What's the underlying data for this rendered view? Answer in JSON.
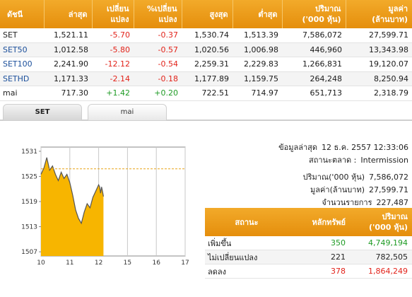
{
  "index_table": {
    "headers": [
      [
        "ดัชนี"
      ],
      [
        "ล่าสุด"
      ],
      [
        "เปลี่ยน",
        "แปลง"
      ],
      [
        "%เปลี่ยน",
        "แปลง"
      ],
      [
        "สูงสุด"
      ],
      [
        "ต่ำสุด"
      ],
      [
        "ปริมาณ",
        "('000 หุ้น)"
      ],
      [
        "มูลค่า",
        "(ล้านบาท)"
      ]
    ],
    "rows": [
      {
        "name": "SET",
        "is_link": false,
        "last": "1,521.11",
        "change": "-5.70",
        "pct": "-0.37",
        "high": "1,530.74",
        "low": "1,513.39",
        "volume": "7,586,072",
        "value": "27,599.71",
        "dir": "neg"
      },
      {
        "name": "SET50",
        "is_link": true,
        "last": "1,012.58",
        "change": "-5.80",
        "pct": "-0.57",
        "high": "1,020.56",
        "low": "1,006.98",
        "volume": "446,960",
        "value": "13,343.98",
        "dir": "neg"
      },
      {
        "name": "SET100",
        "is_link": true,
        "last": "2,241.90",
        "change": "-12.12",
        "pct": "-0.54",
        "high": "2,259.31",
        "low": "2,229.83",
        "volume": "1,266,831",
        "value": "19,120.07",
        "dir": "neg"
      },
      {
        "name": "SETHD",
        "is_link": true,
        "last": "1,171.33",
        "change": "-2.14",
        "pct": "-0.18",
        "high": "1,177.89",
        "low": "1,159.75",
        "volume": "264,248",
        "value": "8,250.94",
        "dir": "neg"
      },
      {
        "name": "mai",
        "is_link": false,
        "last": "717.30",
        "change": "+1.42",
        "pct": "+0.20",
        "high": "722.51",
        "low": "714.97",
        "volume": "651,713",
        "value": "2,318.79",
        "dir": "pos"
      }
    ]
  },
  "tabs": [
    {
      "label": "SET",
      "active": true
    },
    {
      "label": "mai",
      "active": false
    }
  ],
  "info": {
    "updated_label": "ข้อมูลล่าสุด",
    "updated_value": "12 ธ.ค. 2557 12:33:06",
    "status_label": "สถานะตลาด :",
    "status_value": "Intermission",
    "volume_label": "ปริมาณ('000 หุ้น)",
    "volume_value": "7,586,072",
    "value_label": "มูลค่า(ล้านบาท)",
    "value_value": "27,599.71",
    "trades_label": "จำนวนรายการ",
    "trades_value": "227,487"
  },
  "summary_table": {
    "headers": [
      [
        "สถานะ"
      ],
      [
        "หลักทรัพย์"
      ],
      [
        "ปริมาณ",
        "('000 หุ้น)"
      ]
    ],
    "rows": [
      {
        "status": "เพิ่มขึ้น",
        "count": "350",
        "volume": "4,749,194",
        "color": "#1e9b24"
      },
      {
        "status": "ไม่เปลี่ยนแปลง",
        "count": "221",
        "volume": "782,505",
        "color": "#222222"
      },
      {
        "status": "ลดลง",
        "count": "378",
        "volume": "1,864,249",
        "color": "#e2231a"
      }
    ]
  },
  "chart_data": {
    "type": "area",
    "title": "",
    "xlabel": "",
    "ylabel": "",
    "x_ticks": [
      "10",
      "11",
      "12",
      "15",
      "16",
      "17"
    ],
    "y_ticks": [
      1507,
      1513,
      1519,
      1525,
      1531
    ],
    "ylim": [
      1506,
      1532
    ],
    "reference_line": 1526.8,
    "colors": {
      "fill": "#f7b500",
      "line": "#555555",
      "reference": "#e8a317"
    },
    "series": [
      {
        "x": [
          10.0,
          10.1,
          10.2,
          10.3,
          10.4,
          10.5,
          10.6,
          10.7,
          10.8,
          10.9,
          11.0,
          11.1,
          11.2,
          11.3,
          11.4,
          11.5,
          11.6,
          11.7,
          11.8,
          11.9,
          12.0,
          12.1,
          12.2,
          12.3,
          12.4,
          12.5
        ],
        "y": [
          1525.5,
          1527.0,
          1529.5,
          1526.5,
          1527.5,
          1525.5,
          1524.0,
          1526.0,
          1524.5,
          1525.5,
          1523.5,
          1520.5,
          1517.0,
          1515.0,
          1513.8,
          1516.5,
          1518.5,
          1517.5,
          1520.0,
          1521.5,
          1523.0,
          1522.5,
          1521.0,
          1522.5,
          1521.5,
          1520.2
        ]
      }
    ]
  }
}
